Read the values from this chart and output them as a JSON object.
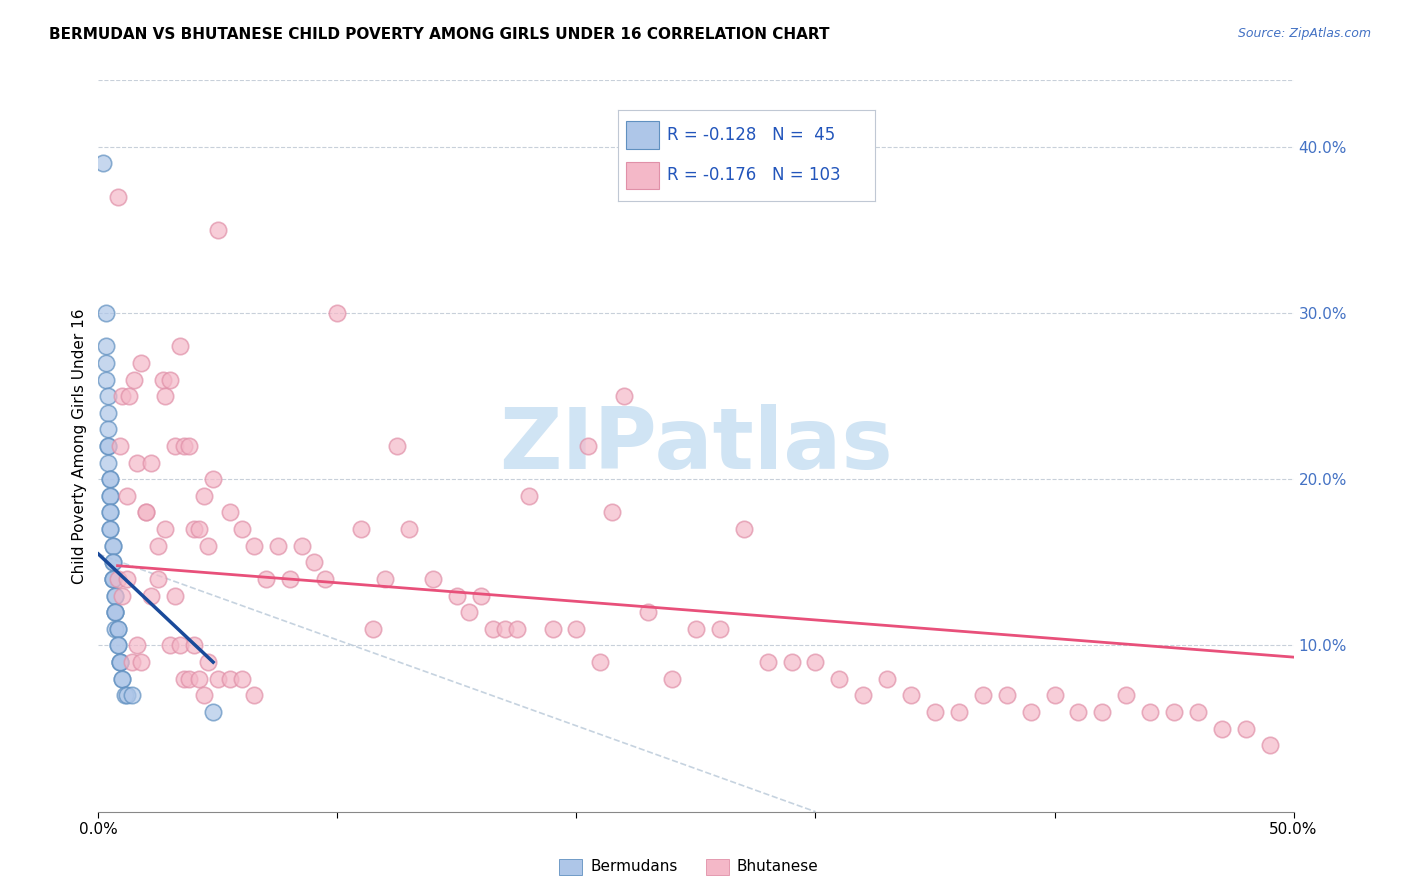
{
  "title": "BERMUDAN VS BHUTANESE CHILD POVERTY AMONG GIRLS UNDER 16 CORRELATION CHART",
  "source": "Source: ZipAtlas.com",
  "ylabel": "Child Poverty Among Girls Under 16",
  "xlim": [
    0.0,
    0.5
  ],
  "ylim": [
    0.0,
    0.44
  ],
  "yticks_right": [
    0.1,
    0.2,
    0.3,
    0.4
  ],
  "ytick_right_labels": [
    "10.0%",
    "20.0%",
    "30.0%",
    "40.0%"
  ],
  "xtick_vals": [
    0.0,
    0.1,
    0.2,
    0.3,
    0.4,
    0.5
  ],
  "xtick_labels": [
    "0.0%",
    "",
    "",
    "",
    "",
    "50.0%"
  ],
  "bermudan_color": "#aec6e8",
  "bhutanese_color": "#f4b8c8",
  "bermudan_edge_color": "#6090c0",
  "bhutanese_edge_color": "#e090a8",
  "bermudan_line_color": "#1a4a9a",
  "bhutanese_line_color": "#e8507a",
  "dashed_line_color": "#b8c8d8",
  "watermark_text": "ZIPatlas",
  "watermark_color": "#d0e4f4",
  "legend_box_color": "#d0d8e0",
  "bermudan_x": [
    0.002,
    0.003,
    0.003,
    0.003,
    0.003,
    0.004,
    0.004,
    0.004,
    0.004,
    0.004,
    0.004,
    0.005,
    0.005,
    0.005,
    0.005,
    0.005,
    0.005,
    0.005,
    0.005,
    0.006,
    0.006,
    0.006,
    0.006,
    0.006,
    0.006,
    0.006,
    0.007,
    0.007,
    0.007,
    0.007,
    0.007,
    0.007,
    0.008,
    0.008,
    0.008,
    0.008,
    0.009,
    0.009,
    0.009,
    0.01,
    0.01,
    0.011,
    0.012,
    0.014,
    0.048
  ],
  "bermudan_y": [
    0.39,
    0.3,
    0.28,
    0.27,
    0.26,
    0.25,
    0.24,
    0.23,
    0.22,
    0.22,
    0.21,
    0.2,
    0.2,
    0.19,
    0.19,
    0.18,
    0.18,
    0.17,
    0.17,
    0.16,
    0.16,
    0.15,
    0.15,
    0.14,
    0.14,
    0.14,
    0.13,
    0.13,
    0.12,
    0.12,
    0.12,
    0.11,
    0.11,
    0.11,
    0.1,
    0.1,
    0.09,
    0.09,
    0.09,
    0.08,
    0.08,
    0.07,
    0.07,
    0.07,
    0.06
  ],
  "bhutanese_x": [
    0.008,
    0.009,
    0.01,
    0.012,
    0.013,
    0.015,
    0.016,
    0.018,
    0.02,
    0.022,
    0.025,
    0.027,
    0.028,
    0.03,
    0.032,
    0.034,
    0.036,
    0.038,
    0.04,
    0.042,
    0.044,
    0.046,
    0.048,
    0.05,
    0.055,
    0.06,
    0.065,
    0.07,
    0.075,
    0.08,
    0.085,
    0.09,
    0.095,
    0.1,
    0.11,
    0.115,
    0.12,
    0.125,
    0.13,
    0.14,
    0.15,
    0.155,
    0.16,
    0.165,
    0.17,
    0.175,
    0.18,
    0.19,
    0.2,
    0.205,
    0.21,
    0.215,
    0.22,
    0.23,
    0.24,
    0.25,
    0.26,
    0.27,
    0.28,
    0.29,
    0.3,
    0.31,
    0.32,
    0.33,
    0.34,
    0.35,
    0.36,
    0.37,
    0.38,
    0.39,
    0.4,
    0.41,
    0.42,
    0.43,
    0.44,
    0.45,
    0.46,
    0.47,
    0.48,
    0.49,
    0.008,
    0.01,
    0.012,
    0.014,
    0.016,
    0.018,
    0.02,
    0.022,
    0.025,
    0.028,
    0.03,
    0.032,
    0.034,
    0.036,
    0.038,
    0.04,
    0.042,
    0.044,
    0.046,
    0.05,
    0.055,
    0.06,
    0.065
  ],
  "bhutanese_y": [
    0.37,
    0.22,
    0.25,
    0.19,
    0.25,
    0.26,
    0.21,
    0.27,
    0.18,
    0.21,
    0.16,
    0.26,
    0.25,
    0.26,
    0.22,
    0.28,
    0.22,
    0.22,
    0.17,
    0.17,
    0.19,
    0.16,
    0.2,
    0.35,
    0.18,
    0.17,
    0.16,
    0.14,
    0.16,
    0.14,
    0.16,
    0.15,
    0.14,
    0.3,
    0.17,
    0.11,
    0.14,
    0.22,
    0.17,
    0.14,
    0.13,
    0.12,
    0.13,
    0.11,
    0.11,
    0.11,
    0.19,
    0.11,
    0.11,
    0.22,
    0.09,
    0.18,
    0.25,
    0.12,
    0.08,
    0.11,
    0.11,
    0.17,
    0.09,
    0.09,
    0.09,
    0.08,
    0.07,
    0.08,
    0.07,
    0.06,
    0.06,
    0.07,
    0.07,
    0.06,
    0.07,
    0.06,
    0.06,
    0.07,
    0.06,
    0.06,
    0.06,
    0.05,
    0.05,
    0.04,
    0.14,
    0.13,
    0.14,
    0.09,
    0.1,
    0.09,
    0.18,
    0.13,
    0.14,
    0.17,
    0.1,
    0.13,
    0.1,
    0.08,
    0.08,
    0.1,
    0.08,
    0.07,
    0.09,
    0.08,
    0.08,
    0.08,
    0.07
  ],
  "berm_line_x0": 0.0,
  "berm_line_x1": 0.048,
  "berm_line_y0": 0.155,
  "berm_line_y1": 0.09,
  "bhut_line_x0": 0.008,
  "bhut_line_x1": 0.5,
  "bhut_line_y0": 0.148,
  "bhut_line_y1": 0.093,
  "dash_line_x0": 0.0,
  "dash_line_x1": 0.3,
  "dash_line_y0": 0.155,
  "dash_line_y1": 0.0
}
